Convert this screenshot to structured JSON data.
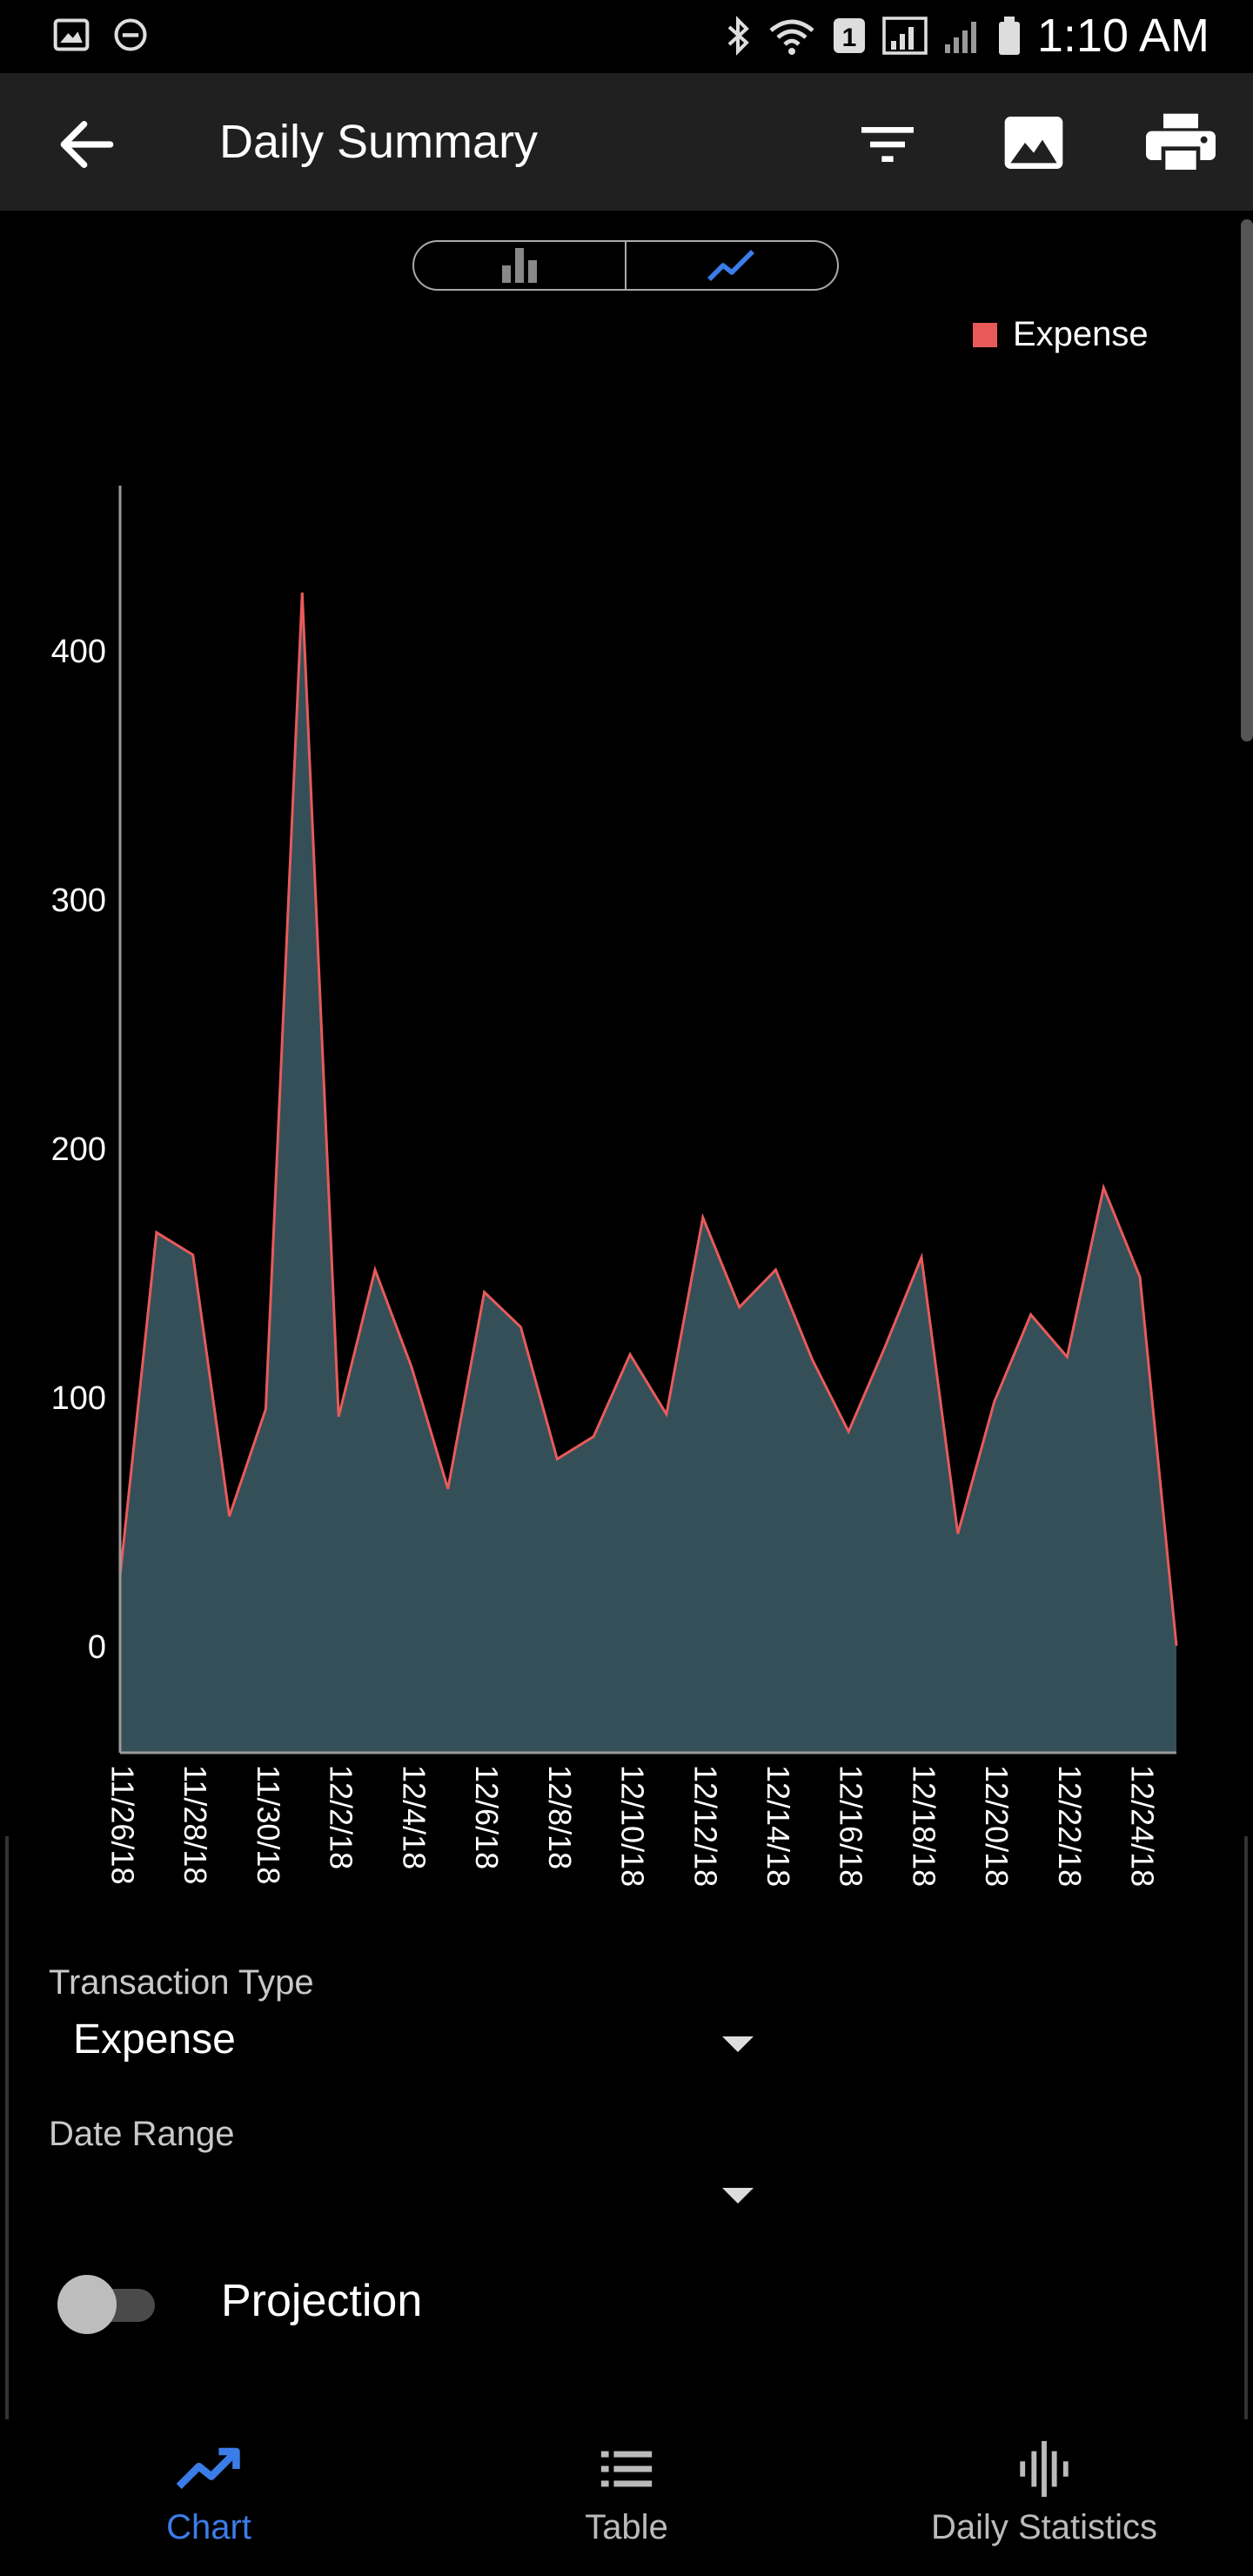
{
  "status_bar": {
    "time": "1:10 AM",
    "notification_count": "1"
  },
  "app_bar": {
    "title": "Daily Summary"
  },
  "chart_toggle": {
    "options": [
      "bar",
      "line"
    ],
    "selected": "line"
  },
  "colors": {
    "accent": "#3b7de8",
    "expense_line": "#e85a5a",
    "area_fill": "#344f57",
    "app_bar_bg": "#202020"
  },
  "chart_data": {
    "type": "area",
    "title": "",
    "xlabel": "",
    "ylabel": "",
    "ylim": [
      -43,
      466
    ],
    "y_ticks": [
      0,
      100,
      200,
      300,
      400
    ],
    "x_tick_labels": [
      "11/26/18",
      "11/28/18",
      "11/30/18",
      "12/2/18",
      "12/4/18",
      "12/6/18",
      "12/8/18",
      "12/10/18",
      "12/12/18",
      "12/14/18",
      "12/16/18",
      "12/18/18",
      "12/20/18",
      "12/22/18",
      "12/24/18"
    ],
    "categories": [
      "11/26/18",
      "11/27/18",
      "11/28/18",
      "11/29/18",
      "11/30/18",
      "12/1/18",
      "12/2/18",
      "12/3/18",
      "12/4/18",
      "12/5/18",
      "12/6/18",
      "12/7/18",
      "12/8/18",
      "12/9/18",
      "12/10/18",
      "12/11/18",
      "12/12/18",
      "12/13/18",
      "12/14/18",
      "12/15/18",
      "12/16/18",
      "12/17/18",
      "12/18/18",
      "12/19/18",
      "12/20/18",
      "12/21/18",
      "12/22/18",
      "12/23/18",
      "12/24/18",
      "12/25/18"
    ],
    "series": [
      {
        "name": "Expense",
        "values": [
          28,
          166,
          157,
          52,
          95,
          423,
          92,
          151,
          112,
          63,
          142,
          128,
          75,
          84,
          117,
          93,
          172,
          136,
          151,
          115,
          86,
          120,
          156,
          45,
          98,
          133,
          116,
          184,
          148,
          0
        ]
      }
    ],
    "legend": "top-right",
    "grid": false
  },
  "form": {
    "transaction_type_label": "Transaction Type",
    "transaction_type_value": "Expense",
    "date_range_label": "Date Range",
    "date_range_value": "",
    "projection_label": "Projection",
    "projection_on": false
  },
  "bottom_nav": {
    "items": [
      {
        "label": "Chart",
        "icon": "trending-up-icon",
        "active": true
      },
      {
        "label": "Table",
        "icon": "list-icon",
        "active": false
      },
      {
        "label": "Daily Statistics",
        "icon": "waveform-icon",
        "active": false
      }
    ]
  }
}
